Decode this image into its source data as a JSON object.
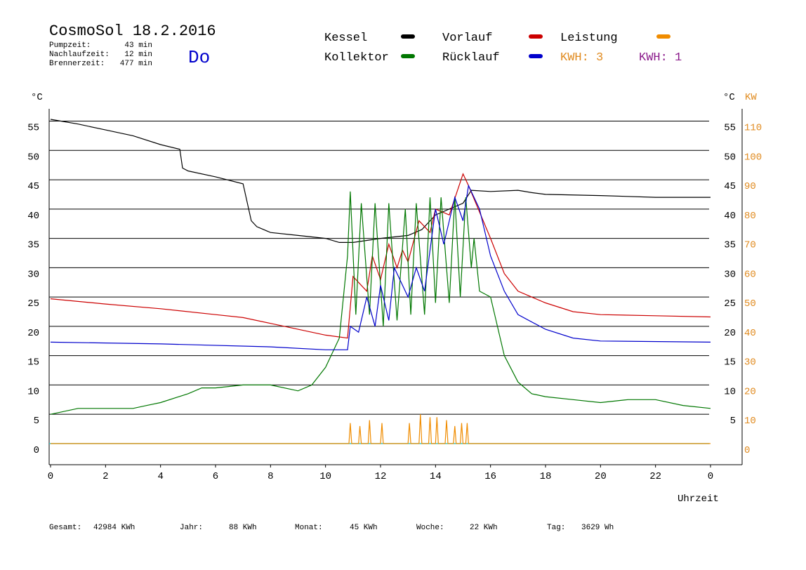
{
  "header": {
    "title": "CosmoSol 18.2.2016",
    "day": "Do",
    "stats": [
      {
        "label": "Pumpzeit:",
        "value": "43 min"
      },
      {
        "label": "Nachlaufzeit:",
        "value": "12 min"
      },
      {
        "label": "Brennerzeit:",
        "value": "477 min"
      }
    ]
  },
  "chart_data": {
    "type": "line",
    "y_unit": "°C",
    "y2_unit": "°C",
    "y2_label": "KW",
    "x_label": "Uhrzeit",
    "xlim": [
      0,
      25
    ],
    "xticks": [
      0,
      2,
      4,
      6,
      8,
      10,
      12,
      14,
      16,
      18,
      20,
      22,
      {
        "value": 24,
        "label": "0"
      }
    ],
    "ylim": [
      -3.6,
      57.1
    ],
    "yticks": [
      0,
      5,
      10,
      15,
      20,
      25,
      30,
      35,
      40,
      45,
      50,
      55
    ],
    "y2lim": [
      -7.2,
      114.2
    ],
    "y2ticks": [
      0,
      10,
      20,
      30,
      40,
      50,
      60,
      70,
      80,
      90,
      100,
      110
    ],
    "grid": true,
    "series": [
      {
        "name": "Kessel",
        "color": "#000000",
        "x": [
          0,
          1,
          2,
          3,
          4,
          4.7,
          4.8,
          5,
          6,
          7,
          7.3,
          7.5,
          8,
          9,
          10,
          10.5,
          11,
          12,
          13,
          13.5,
          14,
          14.5,
          15,
          15.3,
          16,
          17,
          17.5,
          18,
          20,
          22,
          24
        ],
        "values": [
          55.3,
          54.5,
          53.5,
          52.5,
          51,
          50.2,
          47,
          46.5,
          45.5,
          44.3,
          38,
          37,
          36,
          35.5,
          35,
          34.3,
          34.3,
          35,
          35.5,
          36.5,
          39,
          40,
          41,
          43.2,
          43,
          43.2,
          42.8,
          42.5,
          42.3,
          42,
          42
        ]
      },
      {
        "name": "Vorlauf",
        "color": "#cc0000",
        "x": [
          0,
          2,
          4,
          6,
          7,
          8,
          9,
          10,
          10.8,
          11,
          11.5,
          11.7,
          12,
          12.3,
          12.6,
          12.8,
          13,
          13.4,
          13.8,
          14,
          14.5,
          15,
          15.2,
          16,
          16.5,
          17,
          18,
          19,
          20,
          22,
          24
        ],
        "values": [
          24.7,
          23.8,
          23,
          22,
          21.5,
          20.5,
          19.5,
          18.5,
          18,
          28.5,
          26,
          32,
          28,
          34,
          30,
          33,
          31,
          38,
          36,
          40,
          39,
          46,
          44,
          35,
          29,
          26,
          24,
          22.5,
          22,
          21.8,
          21.6
        ]
      },
      {
        "name": "Leistung",
        "color": "#f08c00",
        "axis": "y2",
        "x": [
          0,
          10.85,
          10.9,
          10.95,
          11.2,
          11.25,
          11.3,
          11.55,
          11.6,
          11.65,
          12,
          12.05,
          12.1,
          13,
          13.05,
          13.1,
          13.4,
          13.45,
          13.5,
          13.75,
          13.8,
          13.85,
          14,
          14.05,
          14.1,
          14.35,
          14.4,
          14.45,
          14.65,
          14.7,
          14.75,
          14.9,
          14.95,
          15,
          15.1,
          15.15,
          15.2,
          24
        ],
        "values": [
          0,
          0,
          7,
          0,
          0,
          6,
          0,
          0,
          8,
          0,
          0,
          7,
          0,
          0,
          7,
          0,
          0,
          10,
          0,
          0,
          9,
          0,
          0,
          9,
          0,
          0,
          8,
          0,
          0,
          6,
          0,
          0,
          7,
          0,
          0,
          7,
          0,
          0
        ]
      },
      {
        "name": "Kollektor",
        "color": "#007700",
        "x": [
          0,
          1,
          3,
          3.5,
          4,
          5,
          5.5,
          6,
          7,
          8,
          9,
          9.5,
          10,
          10.5,
          10.8,
          10.9,
          11.1,
          11.3,
          11.6,
          11.8,
          12.1,
          12.3,
          12.6,
          12.9,
          13.1,
          13.3,
          13.6,
          13.8,
          14,
          14.2,
          14.5,
          14.7,
          14.9,
          15.1,
          15.3,
          15.4,
          15.6,
          16,
          16.5,
          17,
          17.5,
          18,
          19,
          20,
          21,
          22,
          23,
          24
        ],
        "values": [
          5,
          6,
          6,
          6.5,
          7,
          8.5,
          9.5,
          9.5,
          10,
          10,
          9,
          10,
          13,
          18,
          32,
          43,
          22,
          41,
          22,
          41,
          20,
          41,
          21,
          40,
          22,
          41,
          22,
          42,
          24,
          42,
          24,
          42,
          25,
          42,
          30,
          35,
          26,
          25,
          15,
          10.5,
          8.5,
          8,
          7.5,
          7,
          7.5,
          7.5,
          6.5,
          6
        ]
      },
      {
        "name": "Rücklauf",
        "color": "#0000cc",
        "x": [
          0,
          4,
          8,
          10,
          10.8,
          10.9,
          11.2,
          11.5,
          11.8,
          12,
          12.3,
          12.5,
          13,
          13.3,
          13.6,
          14,
          14.3,
          14.7,
          15,
          15.2,
          15.6,
          16,
          16.5,
          17,
          18,
          19,
          20,
          24
        ],
        "values": [
          17.3,
          17,
          16.5,
          16,
          16,
          20,
          19,
          25,
          20,
          27,
          21,
          30,
          25,
          30,
          26,
          40,
          34,
          42,
          38,
          44,
          40,
          32,
          26,
          22,
          19.5,
          18,
          17.5,
          17.3
        ]
      }
    ],
    "annotations": [
      {
        "text": "KWH: 3",
        "color": "#e08a1e"
      },
      {
        "text": "KWH: 1",
        "color": "#8b1a8b"
      }
    ]
  },
  "footer": [
    {
      "label": "Gesamt:",
      "value": "42984 KWh"
    },
    {
      "label": "Jahr:",
      "value": "88 KWh"
    },
    {
      "label": "Monat:",
      "value": "45 KWh"
    },
    {
      "label": "Woche:",
      "value": "22 KWh"
    },
    {
      "label": "Tag:",
      "value": "3629 Wh"
    }
  ]
}
